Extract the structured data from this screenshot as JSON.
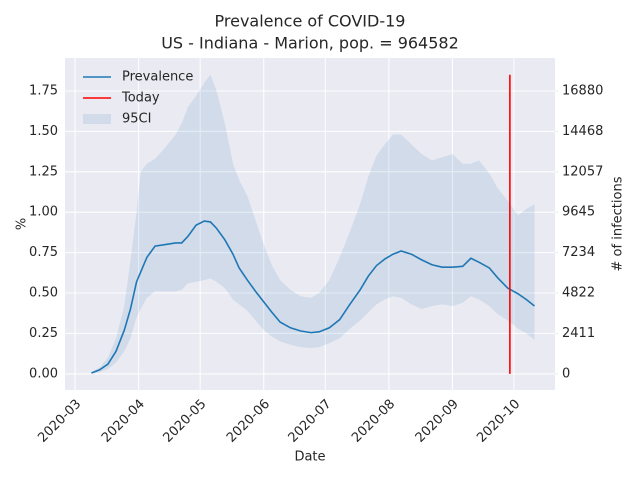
{
  "chart_data": {
    "type": "line",
    "title": "Prevalence of COVID-19",
    "subtitle": "US - Indiana - Marion, pop. = 964582",
    "x_label": "Date",
    "y_label": "%",
    "y2_label": "# of infections",
    "x": [
      8,
      12,
      16,
      20,
      24,
      27,
      30,
      32,
      35,
      39,
      44,
      49,
      52,
      55,
      59,
      63,
      66,
      69,
      73,
      77,
      80,
      84,
      88,
      92,
      96,
      100,
      105,
      110,
      115,
      119,
      124,
      129,
      134,
      139,
      143,
      147,
      151,
      155,
      159,
      164,
      169,
      174,
      179,
      184,
      189,
      193,
      197,
      202,
      206,
      211,
      216,
      220,
      224
    ],
    "series": [
      {
        "name": "Prevalence",
        "color": "#1f77b4",
        "values": [
          0.005,
          0.025,
          0.06,
          0.14,
          0.27,
          0.4,
          0.57,
          0.63,
          0.72,
          0.79,
          0.8,
          0.81,
          0.81,
          0.85,
          0.92,
          0.945,
          0.94,
          0.9,
          0.83,
          0.74,
          0.655,
          0.58,
          0.51,
          0.445,
          0.38,
          0.32,
          0.285,
          0.265,
          0.255,
          0.26,
          0.285,
          0.335,
          0.43,
          0.52,
          0.605,
          0.67,
          0.71,
          0.74,
          0.76,
          0.74,
          0.705,
          0.675,
          0.66,
          0.66,
          0.665,
          0.715,
          0.69,
          0.655,
          0.595,
          0.53,
          0.495,
          0.46,
          0.42
        ]
      },
      {
        "name": "Today",
        "color": "#ff0000",
        "x": [
          212,
          212
        ],
        "values": [
          0,
          1.85
        ]
      },
      {
        "name": "95CI",
        "color": "#1f77b4",
        "upper": [
          0.01,
          0.04,
          0.1,
          0.22,
          0.42,
          0.7,
          1.0,
          1.25,
          1.3,
          1.33,
          1.4,
          1.48,
          1.55,
          1.65,
          1.72,
          1.8,
          1.85,
          1.75,
          1.55,
          1.3,
          1.2,
          1.1,
          0.95,
          0.8,
          0.67,
          0.58,
          0.52,
          0.48,
          0.47,
          0.5,
          0.58,
          0.72,
          0.88,
          1.05,
          1.22,
          1.35,
          1.42,
          1.48,
          1.48,
          1.42,
          1.36,
          1.32,
          1.34,
          1.36,
          1.3,
          1.3,
          1.32,
          1.24,
          1.15,
          1.07,
          0.98,
          1.02,
          1.05
        ],
        "lower": [
          0.0,
          0.01,
          0.03,
          0.07,
          0.14,
          0.22,
          0.35,
          0.4,
          0.47,
          0.51,
          0.51,
          0.51,
          0.52,
          0.56,
          0.57,
          0.58,
          0.59,
          0.57,
          0.53,
          0.46,
          0.43,
          0.39,
          0.33,
          0.27,
          0.23,
          0.2,
          0.18,
          0.165,
          0.16,
          0.165,
          0.19,
          0.22,
          0.28,
          0.33,
          0.38,
          0.43,
          0.46,
          0.48,
          0.47,
          0.43,
          0.4,
          0.42,
          0.43,
          0.42,
          0.44,
          0.48,
          0.46,
          0.42,
          0.37,
          0.33,
          0.28,
          0.25,
          0.21
        ]
      }
    ],
    "xlim": [
      -4.9,
      234
    ],
    "xticks": [
      {
        "value": 0,
        "label": "2020-03"
      },
      {
        "value": 31,
        "label": "2020-04"
      },
      {
        "value": 61,
        "label": "2020-05"
      },
      {
        "value": 92,
        "label": "2020-06"
      },
      {
        "value": 122,
        "label": "2020-07"
      },
      {
        "value": 153,
        "label": "2020-08"
      },
      {
        "value": 184,
        "label": "2020-09"
      },
      {
        "value": 214,
        "label": "2020-10"
      }
    ],
    "ylim": [
      -0.1,
      1.954
    ],
    "yticks": [
      {
        "value": 0,
        "label": "0.00"
      },
      0.25,
      {
        "value": 0.5,
        "label": "0.50"
      },
      0.75,
      {
        "value": 1,
        "label": "1.00"
      },
      1.25,
      {
        "value": 1.5,
        "label": "1.50"
      },
      1.75
    ],
    "y2lim": [
      -964.6,
      18848
    ],
    "y2ticks": [
      0,
      2411,
      4822,
      7234,
      9645,
      12057,
      14468,
      16880
    ],
    "grid": true,
    "legend": "upper left"
  }
}
